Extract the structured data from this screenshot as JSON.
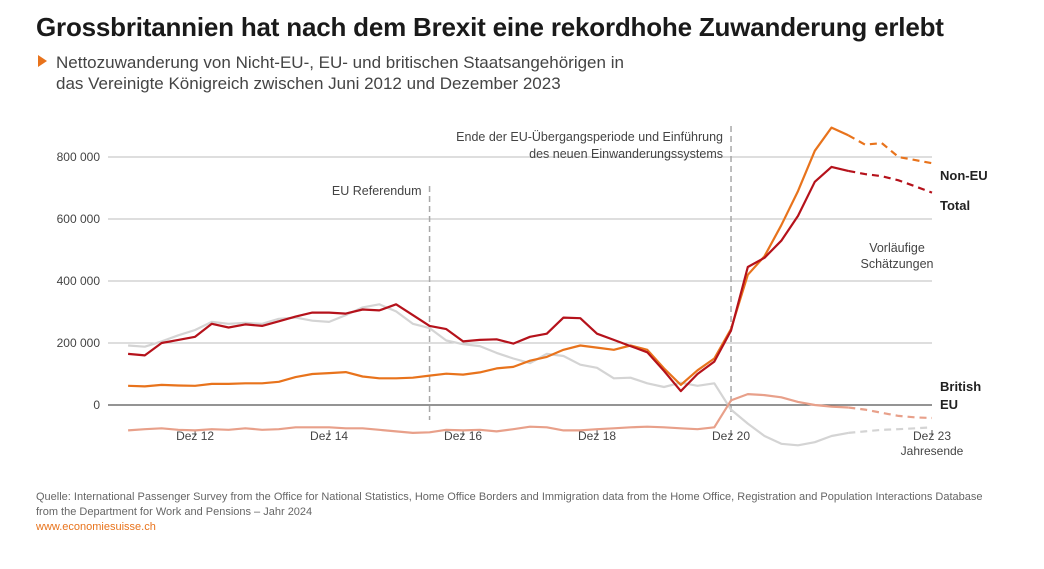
{
  "title": "Grossbritannien hat nach dem Brexit eine rekordhohe Zuwanderung erlebt",
  "subtitle_lines": [
    "Nettozuwanderung von Nicht-EU-, EU- und britischen Staatsangehörigen in",
    "das Vereinigte Königreich zwischen Juni 2012 und Dezember 2023"
  ],
  "source": {
    "text": "Quelle:  International Passenger Survey from the Office for National Statistics, Home Office Borders and Immigration data from the Home Office, Registration and Population Interactions Database from the Department for Work and Pensions – Jahr 2024",
    "link": "www.economiesuisse.ch"
  },
  "colors": {
    "total": "#b5121b",
    "non_eu": "#e8731c",
    "british": "#e8a08a",
    "eu": "#d4d4d4",
    "grid": "#bdbdbd",
    "vline": "#a8a8a8"
  },
  "chart_data": {
    "type": "line",
    "x_unit": "year",
    "xlim": [
      2011.7,
      2024.0
    ],
    "ylim": [
      -100000,
      900000
    ],
    "y_ticks": [
      0,
      200000,
      400000,
      600000,
      800000
    ],
    "y_tick_labels": [
      "0",
      "200 000",
      "400 000",
      "600 000",
      "800 000"
    ],
    "x_ticks": [
      2013.0,
      2015.0,
      2017.0,
      2019.0,
      2021.0,
      2024.0
    ],
    "x_tick_labels": [
      "Dez 12",
      "Dez 14",
      "Dez 16",
      "Dez 18",
      "Dez 20",
      "Dez 23"
    ],
    "x_axis_note": "Jahresende",
    "annotations": [
      {
        "x": 2016.5,
        "lines": [
          "EU Referendum"
        ]
      },
      {
        "x": 2021.0,
        "lines": [
          "Ende der EU-Übergangsperiode und Einführung",
          "des neuen Einwanderungssystems"
        ]
      }
    ],
    "provisional_label": [
      "Vorläufige",
      "Schätzungen"
    ],
    "provisional_from": 2022.75,
    "series": [
      {
        "name": "Total",
        "key": "total",
        "x": [
          2012.0,
          2012.25,
          2012.5,
          2012.75,
          2013.0,
          2013.25,
          2013.5,
          2013.75,
          2014.0,
          2014.25,
          2014.5,
          2014.75,
          2015.0,
          2015.25,
          2015.5,
          2015.75,
          2016.0,
          2016.25,
          2016.5,
          2016.75,
          2017.0,
          2017.25,
          2017.5,
          2017.75,
          2018.0,
          2018.25,
          2018.5,
          2018.75,
          2019.0,
          2019.25,
          2019.5,
          2019.75,
          2020.0,
          2020.25,
          2020.5,
          2020.75,
          2021.0,
          2021.25,
          2021.5,
          2021.75,
          2022.0,
          2022.25,
          2022.5,
          2022.75,
          2023.0,
          2023.25,
          2023.5,
          2023.75,
          2024.0
        ],
        "values": [
          165000,
          160000,
          200000,
          210000,
          220000,
          262000,
          250000,
          260000,
          255000,
          270000,
          285000,
          298000,
          298000,
          295000,
          308000,
          305000,
          325000,
          290000,
          255000,
          245000,
          205000,
          210000,
          212000,
          198000,
          220000,
          230000,
          282000,
          280000,
          230000,
          210000,
          190000,
          170000,
          110000,
          45000,
          100000,
          140000,
          240000,
          445000,
          475000,
          530000,
          610000,
          720000,
          768000,
          755000,
          745000,
          738000,
          725000,
          705000,
          685000
        ]
      },
      {
        "name": "Non-EU",
        "key": "non_eu",
        "x": [
          2012.0,
          2012.25,
          2012.5,
          2012.75,
          2013.0,
          2013.25,
          2013.5,
          2013.75,
          2014.0,
          2014.25,
          2014.5,
          2014.75,
          2015.0,
          2015.25,
          2015.5,
          2015.75,
          2016.0,
          2016.25,
          2016.5,
          2016.75,
          2017.0,
          2017.25,
          2017.5,
          2017.75,
          2018.0,
          2018.25,
          2018.5,
          2018.75,
          2019.0,
          2019.25,
          2019.5,
          2019.75,
          2020.0,
          2020.25,
          2020.5,
          2020.75,
          2021.0,
          2021.25,
          2021.5,
          2021.75,
          2022.0,
          2022.25,
          2022.5,
          2022.75,
          2023.0,
          2023.25,
          2023.5,
          2023.75,
          2024.0
        ],
        "values": [
          62000,
          60000,
          65000,
          63000,
          62000,
          68000,
          68000,
          70000,
          70000,
          75000,
          90000,
          100000,
          103000,
          106000,
          92000,
          86000,
          86000,
          88000,
          95000,
          101000,
          98000,
          105000,
          118000,
          123000,
          143000,
          155000,
          178000,
          192000,
          185000,
          178000,
          192000,
          178000,
          118000,
          65000,
          112000,
          150000,
          245000,
          420000,
          480000,
          580000,
          690000,
          820000,
          895000,
          870000,
          840000,
          845000,
          800000,
          790000,
          780000
        ]
      },
      {
        "name": "British",
        "key": "british",
        "x": [
          2012.0,
          2012.25,
          2012.5,
          2012.75,
          2013.0,
          2013.25,
          2013.5,
          2013.75,
          2014.0,
          2014.25,
          2014.5,
          2014.75,
          2015.0,
          2015.25,
          2015.5,
          2015.75,
          2016.0,
          2016.25,
          2016.5,
          2016.75,
          2017.0,
          2017.25,
          2017.5,
          2017.75,
          2018.0,
          2018.25,
          2018.5,
          2018.75,
          2019.0,
          2019.25,
          2019.5,
          2019.75,
          2020.0,
          2020.25,
          2020.5,
          2020.75,
          2021.0,
          2021.25,
          2021.5,
          2021.75,
          2022.0,
          2022.25,
          2022.5,
          2022.75,
          2023.0,
          2023.25,
          2023.5,
          2023.75,
          2024.0
        ],
        "values": [
          -82000,
          -78000,
          -75000,
          -80000,
          -82000,
          -78000,
          -80000,
          -75000,
          -80000,
          -78000,
          -72000,
          -72000,
          -72000,
          -75000,
          -75000,
          -80000,
          -85000,
          -90000,
          -88000,
          -80000,
          -82000,
          -80000,
          -85000,
          -78000,
          -70000,
          -72000,
          -82000,
          -82000,
          -78000,
          -75000,
          -72000,
          -70000,
          -72000,
          -75000,
          -78000,
          -72000,
          15000,
          35000,
          32000,
          25000,
          10000,
          0,
          -5000,
          -8000,
          -15000,
          -25000,
          -35000,
          -40000,
          -42000
        ]
      },
      {
        "name": "EU",
        "key": "eu",
        "x": [
          2012.0,
          2012.25,
          2012.5,
          2012.75,
          2013.0,
          2013.25,
          2013.5,
          2013.75,
          2014.0,
          2014.25,
          2014.5,
          2014.75,
          2015.0,
          2015.25,
          2015.5,
          2015.75,
          2016.0,
          2016.25,
          2016.5,
          2016.75,
          2017.0,
          2017.25,
          2017.5,
          2017.75,
          2018.0,
          2018.25,
          2018.5,
          2018.75,
          2019.0,
          2019.25,
          2019.5,
          2019.75,
          2020.0,
          2020.25,
          2020.5,
          2020.75,
          2021.0,
          2021.25,
          2021.5,
          2021.75,
          2022.0,
          2022.25,
          2022.5,
          2022.75,
          2023.0,
          2023.25,
          2023.5,
          2023.75,
          2024.0
        ],
        "values": [
          192000,
          188000,
          205000,
          225000,
          242000,
          268000,
          262000,
          265000,
          262000,
          278000,
          282000,
          272000,
          268000,
          290000,
          315000,
          325000,
          302000,
          262000,
          248000,
          208000,
          196000,
          190000,
          168000,
          150000,
          135000,
          165000,
          158000,
          130000,
          120000,
          86000,
          88000,
          70000,
          58000,
          72000,
          62000,
          70000,
          -15000,
          -60000,
          -100000,
          -125000,
          -130000,
          -120000,
          -100000,
          -90000,
          -85000,
          -80000,
          -78000,
          -75000,
          -72000
        ]
      }
    ]
  }
}
